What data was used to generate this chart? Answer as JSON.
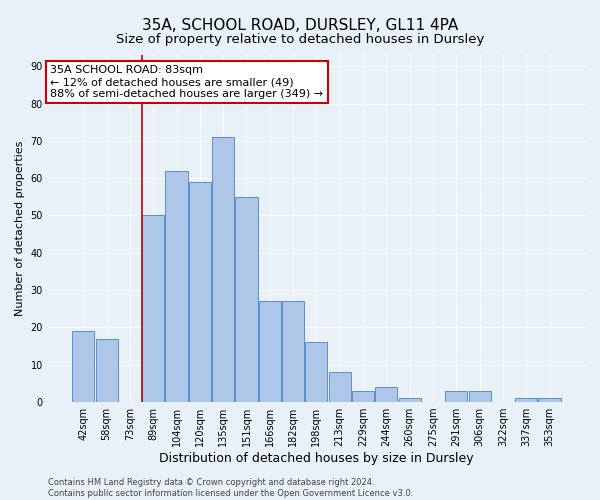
{
  "title": "35A, SCHOOL ROAD, DURSLEY, GL11 4PA",
  "subtitle": "Size of property relative to detached houses in Dursley",
  "xlabel": "Distribution of detached houses by size in Dursley",
  "ylabel": "Number of detached properties",
  "categories": [
    "42sqm",
    "58sqm",
    "73sqm",
    "89sqm",
    "104sqm",
    "120sqm",
    "135sqm",
    "151sqm",
    "166sqm",
    "182sqm",
    "198sqm",
    "213sqm",
    "229sqm",
    "244sqm",
    "260sqm",
    "275sqm",
    "291sqm",
    "306sqm",
    "322sqm",
    "337sqm",
    "353sqm"
  ],
  "values": [
    19,
    17,
    0,
    50,
    62,
    59,
    71,
    55,
    27,
    27,
    16,
    8,
    3,
    4,
    1,
    0,
    3,
    3,
    0,
    1,
    1
  ],
  "bar_color": "#aec6e8",
  "bar_edge_color": "#5b8fc9",
  "background_color": "#e8f0f8",
  "grid_color": "#ffffff",
  "annotation_line1": "35A SCHOOL ROAD: 83sqm",
  "annotation_line2": "← 12% of detached houses are smaller (49)",
  "annotation_line3": "88% of semi-detached houses are larger (349) →",
  "annotation_box_color": "#ffffff",
  "annotation_box_edge_color": "#cc0000",
  "vline_color": "#cc0000",
  "ylim": [
    0,
    93
  ],
  "yticks": [
    0,
    10,
    20,
    30,
    40,
    50,
    60,
    70,
    80,
    90
  ],
  "footer_text": "Contains HM Land Registry data © Crown copyright and database right 2024.\nContains public sector information licensed under the Open Government Licence v3.0.",
  "title_fontsize": 11,
  "subtitle_fontsize": 9.5,
  "ylabel_fontsize": 8,
  "xlabel_fontsize": 9,
  "tick_fontsize": 7,
  "annotation_fontsize": 8,
  "footer_fontsize": 6
}
